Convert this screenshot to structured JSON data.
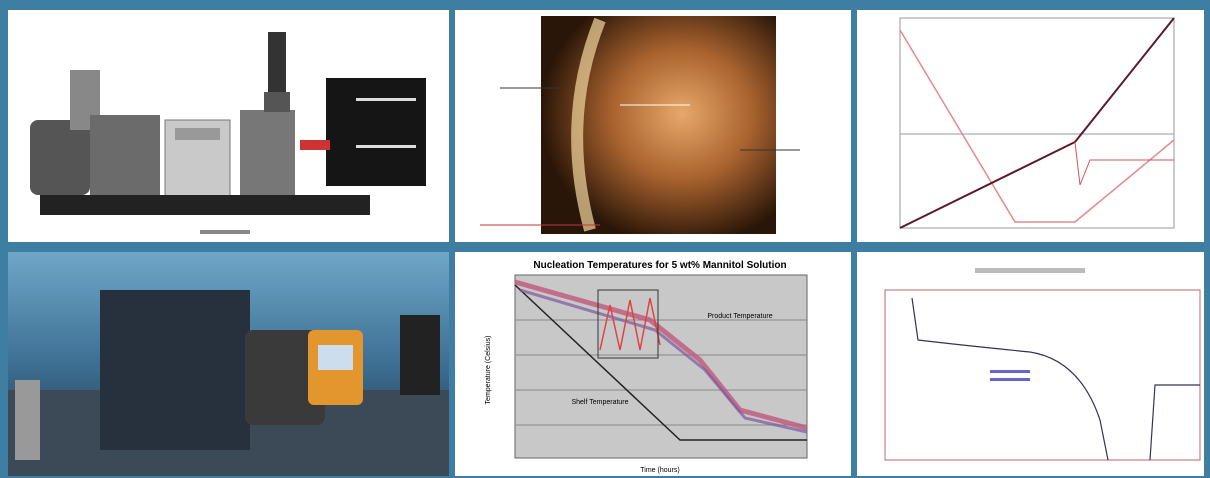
{
  "nucleation_panel": {
    "title": "Nucleation Temperatures for 5 wt% Mannitol Solution",
    "y_label": "Temperature (Celsius)",
    "x_label": "Time (hours)",
    "annotations": [
      "Shelf Temperature",
      "Product Temperature"
    ]
  }
}
